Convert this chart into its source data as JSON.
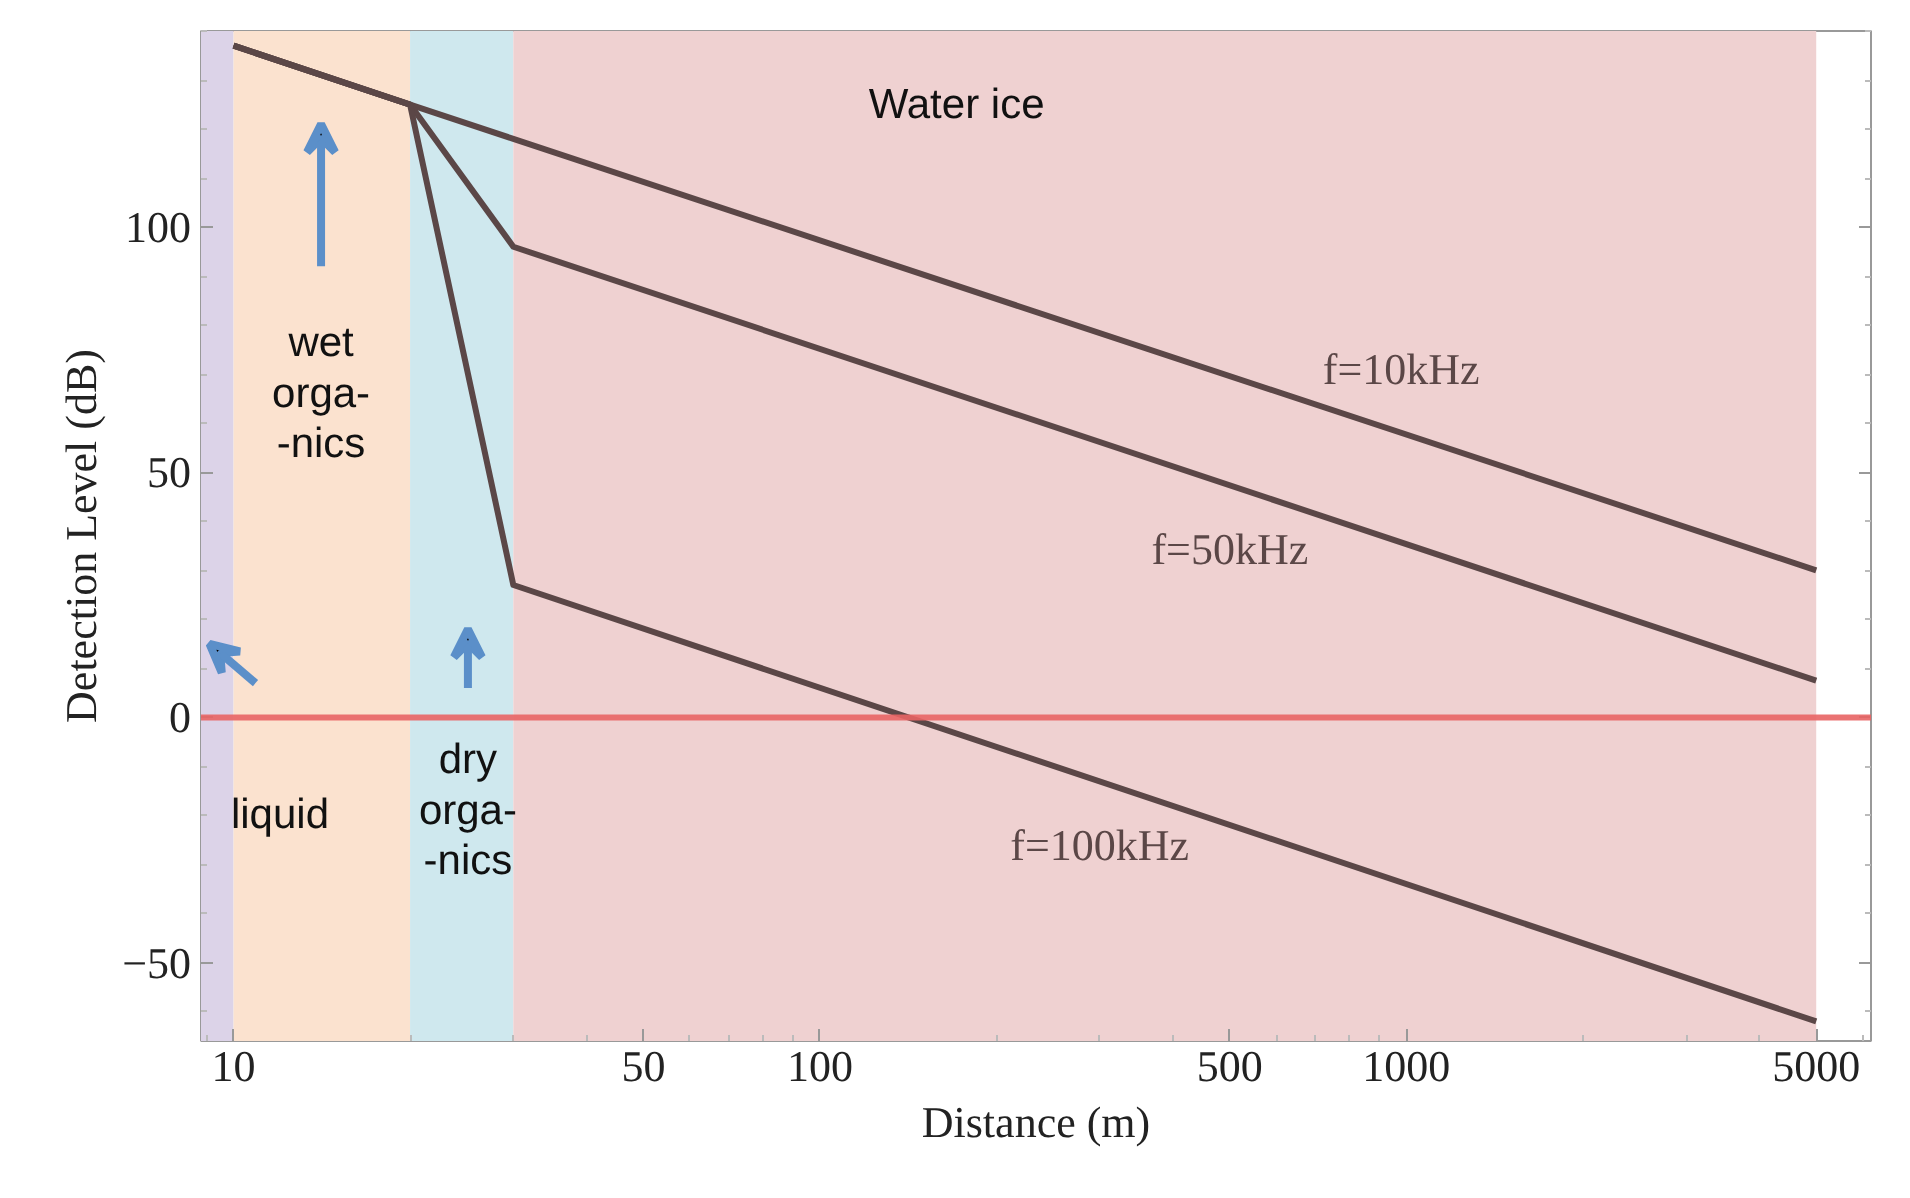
{
  "chart_data": {
    "type": "line",
    "xlabel": "Distance (m)",
    "ylabel": "Detection Level (dB)",
    "log": "x",
    "xlim": [
      8.8,
      6200
    ],
    "ylim": [
      -66,
      140
    ],
    "xticks": [
      10,
      50,
      100,
      500,
      1000,
      5000
    ],
    "yticks": [
      {
        "value": -50,
        "label": "−50"
      },
      {
        "value": 0,
        "label": "0"
      },
      {
        "value": 50,
        "label": "50"
      },
      {
        "value": 100,
        "label": "100"
      }
    ],
    "x": [
      10,
      20,
      30,
      5000
    ],
    "series": [
      {
        "name": "f=10kHz",
        "color": "#5b4747",
        "values": [
          137,
          125,
          118,
          30
        ]
      },
      {
        "name": "f=50kHz",
        "color": "#5b4747",
        "values": [
          137,
          125,
          96,
          7.5
        ]
      },
      {
        "name": "f=100kHz",
        "color": "#5b4747",
        "values": [
          137,
          125,
          27,
          -62
        ]
      }
    ],
    "ref_lines": [
      {
        "axis": "y",
        "value": 0,
        "color": "#e86464"
      }
    ],
    "bands": [
      {
        "axis": "x",
        "from": 8.8,
        "to": 10,
        "label": "liquid",
        "color": "#dcd3e8"
      },
      {
        "axis": "x",
        "from": 10,
        "to": 20,
        "label": "wet\norga-\n-nics",
        "color": "#fbe2cf"
      },
      {
        "axis": "x",
        "from": 20,
        "to": 30,
        "label": "dry\norga-\n-nics",
        "color": "#cfe8ee"
      },
      {
        "axis": "x",
        "from": 30,
        "to": 5000,
        "label": "Water ice",
        "color": "#efd1d1"
      }
    ],
    "grid": false
  }
}
